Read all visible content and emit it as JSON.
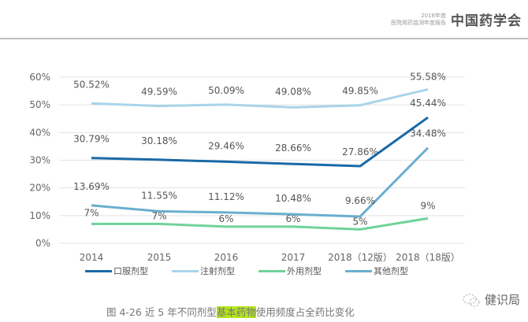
{
  "header": {
    "line1": "2018年度",
    "line2": "医院用药监测年度报告",
    "brand": "中国药学会"
  },
  "caption": {
    "prefix": "图 4-26  近 5 年不同剂型",
    "highlight": "基本药物",
    "suffix": "使用频度占全药比变化"
  },
  "watermark": {
    "icon": "wechat-icon",
    "text": "健识局"
  },
  "chart_data": {
    "type": "line",
    "title": "",
    "xlabel": "",
    "ylabel": "",
    "ylim": [
      0,
      60
    ],
    "yticks": [
      "0%",
      "10%",
      "20%",
      "30%",
      "40%",
      "50%",
      "60%"
    ],
    "ytick_values": [
      0,
      10,
      20,
      30,
      40,
      50,
      60
    ],
    "grid": true,
    "legend_position": "bottom",
    "categories": [
      "2014",
      "2015",
      "2016",
      "2017",
      "2018（12版）",
      "2018（18版）"
    ],
    "series": [
      {
        "name": "口服剂型",
        "color": "#1a6aa8",
        "values": [
          30.79,
          30.18,
          29.46,
          28.66,
          27.86,
          45.44
        ],
        "labels": [
          "30.79%",
          "30.18%",
          "29.46%",
          "28.66%",
          "27.86%",
          "45.44%"
        ]
      },
      {
        "name": "注射剂型",
        "color": "#a8d4ea",
        "values": [
          50.52,
          49.59,
          50.09,
          49.08,
          49.85,
          55.58
        ],
        "labels": [
          "50.52%",
          "49.59%",
          "50.09%",
          "49.08%",
          "49.85%",
          "55.58%"
        ]
      },
      {
        "name": "外用剂型",
        "color": "#6fd39a",
        "values": [
          7,
          7,
          6,
          6,
          5,
          9
        ],
        "labels": [
          "7%",
          "7%",
          "6%",
          "6%",
          "5%",
          "9%"
        ]
      },
      {
        "name": "其他剂型",
        "color": "#6aaed0",
        "values": [
          13.69,
          11.55,
          11.12,
          10.48,
          9.66,
          34.48
        ],
        "labels": [
          "13.69%",
          "11.55%",
          "11.12%",
          "10.48%",
          "9.66%",
          "34.48%"
        ]
      }
    ]
  }
}
